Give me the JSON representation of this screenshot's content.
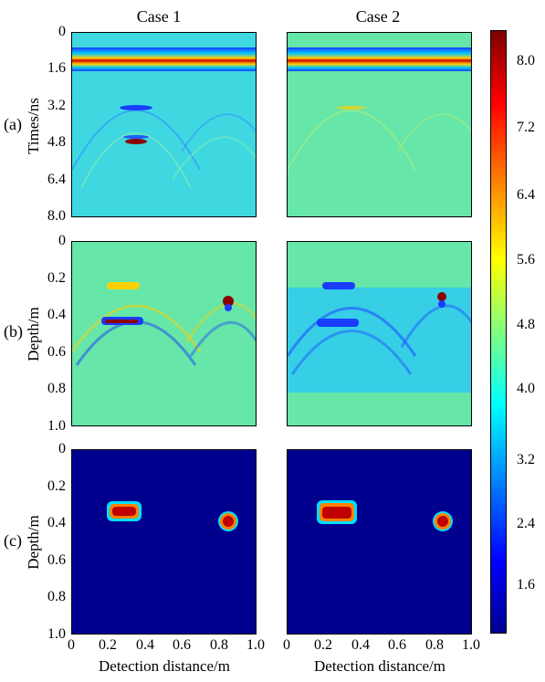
{
  "chart_data": {
    "type": "heatmap",
    "columns": [
      "Case 1",
      "Case 2"
    ],
    "rows": [
      {
        "label": "(a)",
        "ylabel": "Times/ns",
        "yticks": [
          "0",
          "1.6",
          "3.2",
          "4.8",
          "6.4",
          "8.0"
        ],
        "ylim": [
          0,
          8.0
        ]
      },
      {
        "label": "(b)",
        "ylabel": "Depth/m",
        "yticks": [
          "0",
          "0.2",
          "0.4",
          "0.6",
          "0.8",
          "1.0"
        ],
        "ylim": [
          0,
          1.0
        ]
      },
      {
        "label": "(c)",
        "ylabel": "Depth/m",
        "yticks": [
          "0",
          "0.2",
          "0.4",
          "0.6",
          "0.8",
          "1.0"
        ],
        "ylim": [
          0,
          1.0
        ]
      }
    ],
    "xlabel": "Detection distance/m",
    "xticks": [
      "0",
      "0.2",
      "0.4",
      "0.6",
      "0.8",
      "1.0"
    ],
    "xlim": [
      0,
      1.0
    ],
    "colorbar": {
      "ticks": [
        "8.0",
        "7.2",
        "6.4",
        "5.6",
        "4.8",
        "4.0",
        "3.2",
        "2.4",
        "1.6"
      ],
      "range": [
        1.0,
        8.4
      ]
    },
    "objects": [
      {
        "name": "rectangular",
        "x_range": [
          0.2,
          0.36
        ],
        "depth_range": [
          0.28,
          0.35
        ]
      },
      {
        "name": "circular",
        "center_x": 0.84,
        "center_depth": 0.38,
        "radius": 0.05
      }
    ],
    "colors": {
      "background_low": "#00008f",
      "object_high": "#c00000",
      "field": "#66e6b3"
    }
  }
}
